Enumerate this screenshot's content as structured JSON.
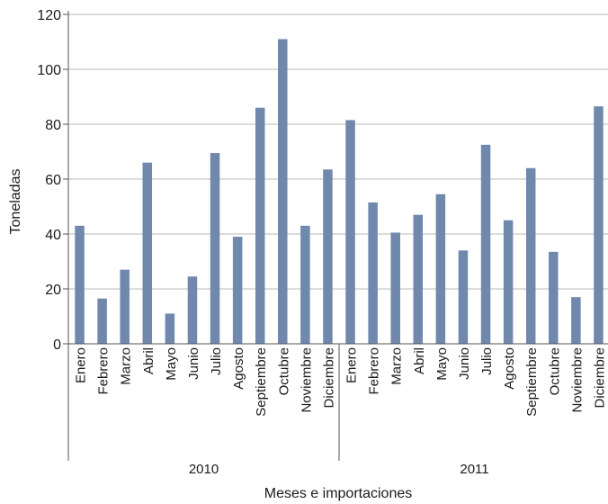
{
  "chart_data": {
    "type": "bar",
    "title": "",
    "xlabel": "Meses e importaciones",
    "ylabel": "Toneladas",
    "ylim": [
      0,
      120
    ],
    "yticks": [
      0,
      20,
      40,
      60,
      80,
      100,
      120
    ],
    "grid": true,
    "bar_color": "#7188ad",
    "groups": [
      {
        "label": "2010",
        "categories": [
          "Enero",
          "Febrero",
          "Marzo",
          "Abril",
          "Mayo",
          "Junio",
          "Julio",
          "Agosto",
          "Septiembre",
          "Octubre",
          "Noviembre",
          "Diciembre"
        ],
        "values": [
          43,
          16.5,
          27,
          66,
          11,
          24.5,
          69.5,
          39,
          86,
          111,
          43,
          63.5
        ]
      },
      {
        "label": "2011",
        "categories": [
          "Enero",
          "Febrero",
          "Marzo",
          "Abril",
          "Mayo",
          "Junio",
          "Julio",
          "Agosto",
          "Septiembre",
          "Octubre",
          "Noviembre",
          "Diciembre"
        ],
        "values": [
          81.5,
          51.5,
          40.5,
          47,
          54.5,
          34,
          72.5,
          45,
          64,
          33.5,
          17,
          86.5
        ]
      }
    ]
  }
}
